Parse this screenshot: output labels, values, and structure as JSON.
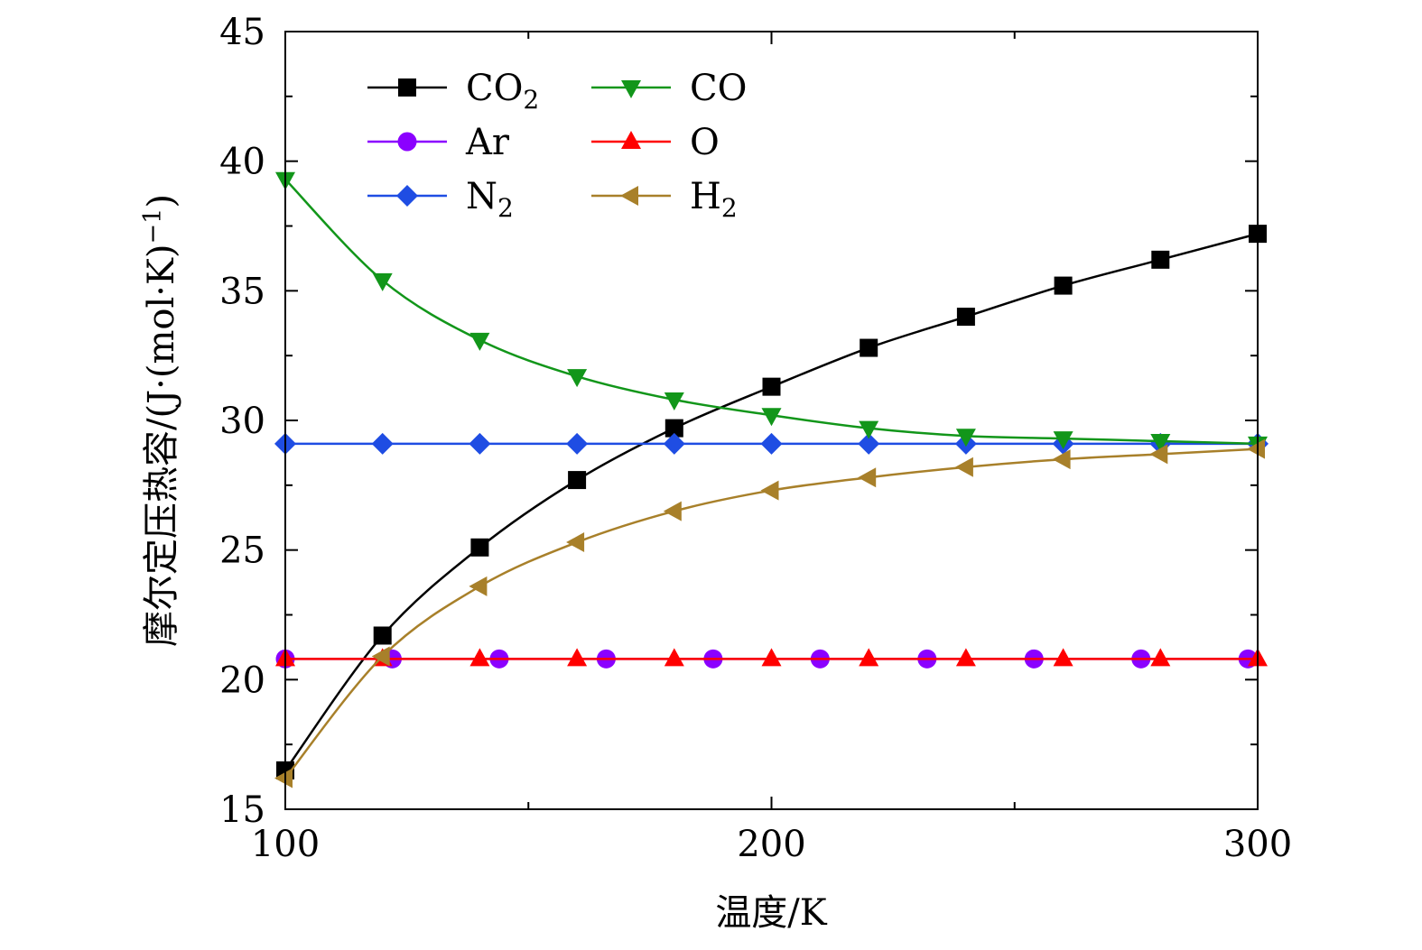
{
  "chart_data": {
    "type": "line",
    "xlabel": "温度/K",
    "ylabel": "摩尔定压热容/(J·(mol·K)",
    "ylabel_sup": "−1",
    "ylabel_close": ")",
    "xlim": [
      100,
      300
    ],
    "ylim": [
      15,
      45
    ],
    "x_ticks": [
      100,
      200,
      300
    ],
    "y_ticks": [
      15,
      20,
      25,
      30,
      35,
      40,
      45
    ],
    "x_minor_step": 50,
    "y_minor_step": 2.5,
    "grid": false,
    "legend_position": "top-left",
    "series": [
      {
        "key": "co2",
        "name": "CO",
        "name_sub": "2",
        "color": "#000000",
        "marker": "square",
        "x": [
          100,
          120,
          140,
          160,
          180,
          200,
          220,
          240,
          260,
          280,
          300
        ],
        "y": [
          16.5,
          21.7,
          25.1,
          27.7,
          29.7,
          31.3,
          32.8,
          34.0,
          35.2,
          36.2,
          37.2
        ]
      },
      {
        "key": "ar",
        "name": "Ar",
        "name_sub": "",
        "color": "#8b00ff",
        "marker": "circle",
        "x": [
          100,
          122,
          144,
          166,
          188,
          210,
          232,
          254,
          276,
          298
        ],
        "y": [
          20.8,
          20.8,
          20.8,
          20.8,
          20.8,
          20.8,
          20.8,
          20.8,
          20.8,
          20.8
        ]
      },
      {
        "key": "n2",
        "name": "N",
        "name_sub": "2",
        "color": "#1f4de3",
        "marker": "diamond",
        "x": [
          100,
          120,
          140,
          160,
          180,
          200,
          220,
          240,
          260,
          280,
          300
        ],
        "y": [
          29.1,
          29.1,
          29.1,
          29.1,
          29.1,
          29.1,
          29.1,
          29.1,
          29.1,
          29.1,
          29.1
        ]
      },
      {
        "key": "co",
        "name": "CO",
        "name_sub": "",
        "color": "#12961a",
        "marker": "triangle-down",
        "x": [
          100,
          120,
          140,
          160,
          180,
          200,
          220,
          240,
          260,
          280,
          300
        ],
        "y": [
          39.3,
          35.4,
          33.1,
          31.7,
          30.8,
          30.2,
          29.7,
          29.4,
          29.3,
          29.2,
          29.1
        ]
      },
      {
        "key": "o",
        "name": "O",
        "name_sub": "",
        "color": "#ff0000",
        "marker": "triangle-up",
        "x": [
          100,
          120,
          140,
          160,
          180,
          200,
          220,
          240,
          260,
          280,
          300
        ],
        "y": [
          20.8,
          20.8,
          20.8,
          20.8,
          20.8,
          20.8,
          20.8,
          20.8,
          20.8,
          20.8,
          20.8
        ]
      },
      {
        "key": "h2",
        "name": "H",
        "name_sub": "2",
        "color": "#a8802a",
        "marker": "triangle-left",
        "x": [
          100,
          120,
          140,
          160,
          180,
          200,
          220,
          240,
          260,
          280,
          300
        ],
        "y": [
          16.2,
          20.9,
          23.6,
          25.3,
          26.5,
          27.3,
          27.8,
          28.2,
          28.5,
          28.7,
          28.9
        ]
      }
    ]
  }
}
